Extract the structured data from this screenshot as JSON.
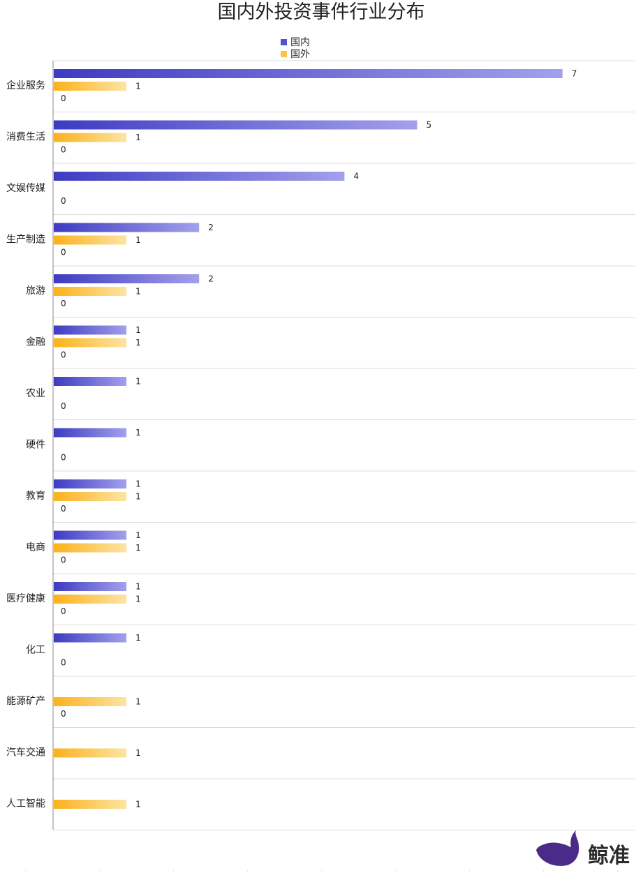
{
  "chart_data": {
    "type": "bar",
    "orientation": "horizontal",
    "title": "国内外投资事件行业分布",
    "categories": [
      "企业服务",
      "消费生活",
      "文娱传媒",
      "生产制造",
      "旅游",
      "金融",
      "农业",
      "硬件",
      "教育",
      "电商",
      "医疗健康",
      "化工",
      "能源矿产",
      "汽车交通",
      "人工智能"
    ],
    "series": [
      {
        "name": "国内",
        "values": [
          7,
          5,
          4,
          2,
          2,
          1,
          1,
          1,
          1,
          1,
          1,
          1,
          null,
          null,
          null
        ],
        "color_start": "#3d3bc1",
        "color_end": "#a3a0ec"
      },
      {
        "name": "国外",
        "values": [
          1,
          1,
          null,
          1,
          1,
          1,
          null,
          null,
          1,
          1,
          1,
          null,
          1,
          1,
          1
        ],
        "color_start": "#fbb21b",
        "color_end": "#fde4a4"
      },
      {
        "name": "",
        "values": [
          0,
          0,
          0,
          0,
          0,
          0,
          0,
          0,
          0,
          0,
          0,
          0,
          0,
          null,
          null
        ]
      }
    ],
    "xlim": [
      0,
      8
    ],
    "grid": true,
    "legend_position": "top-center"
  },
  "brand": {
    "text": "鲸准",
    "color": "#4b2a8a",
    "icon": "whale-icon"
  }
}
